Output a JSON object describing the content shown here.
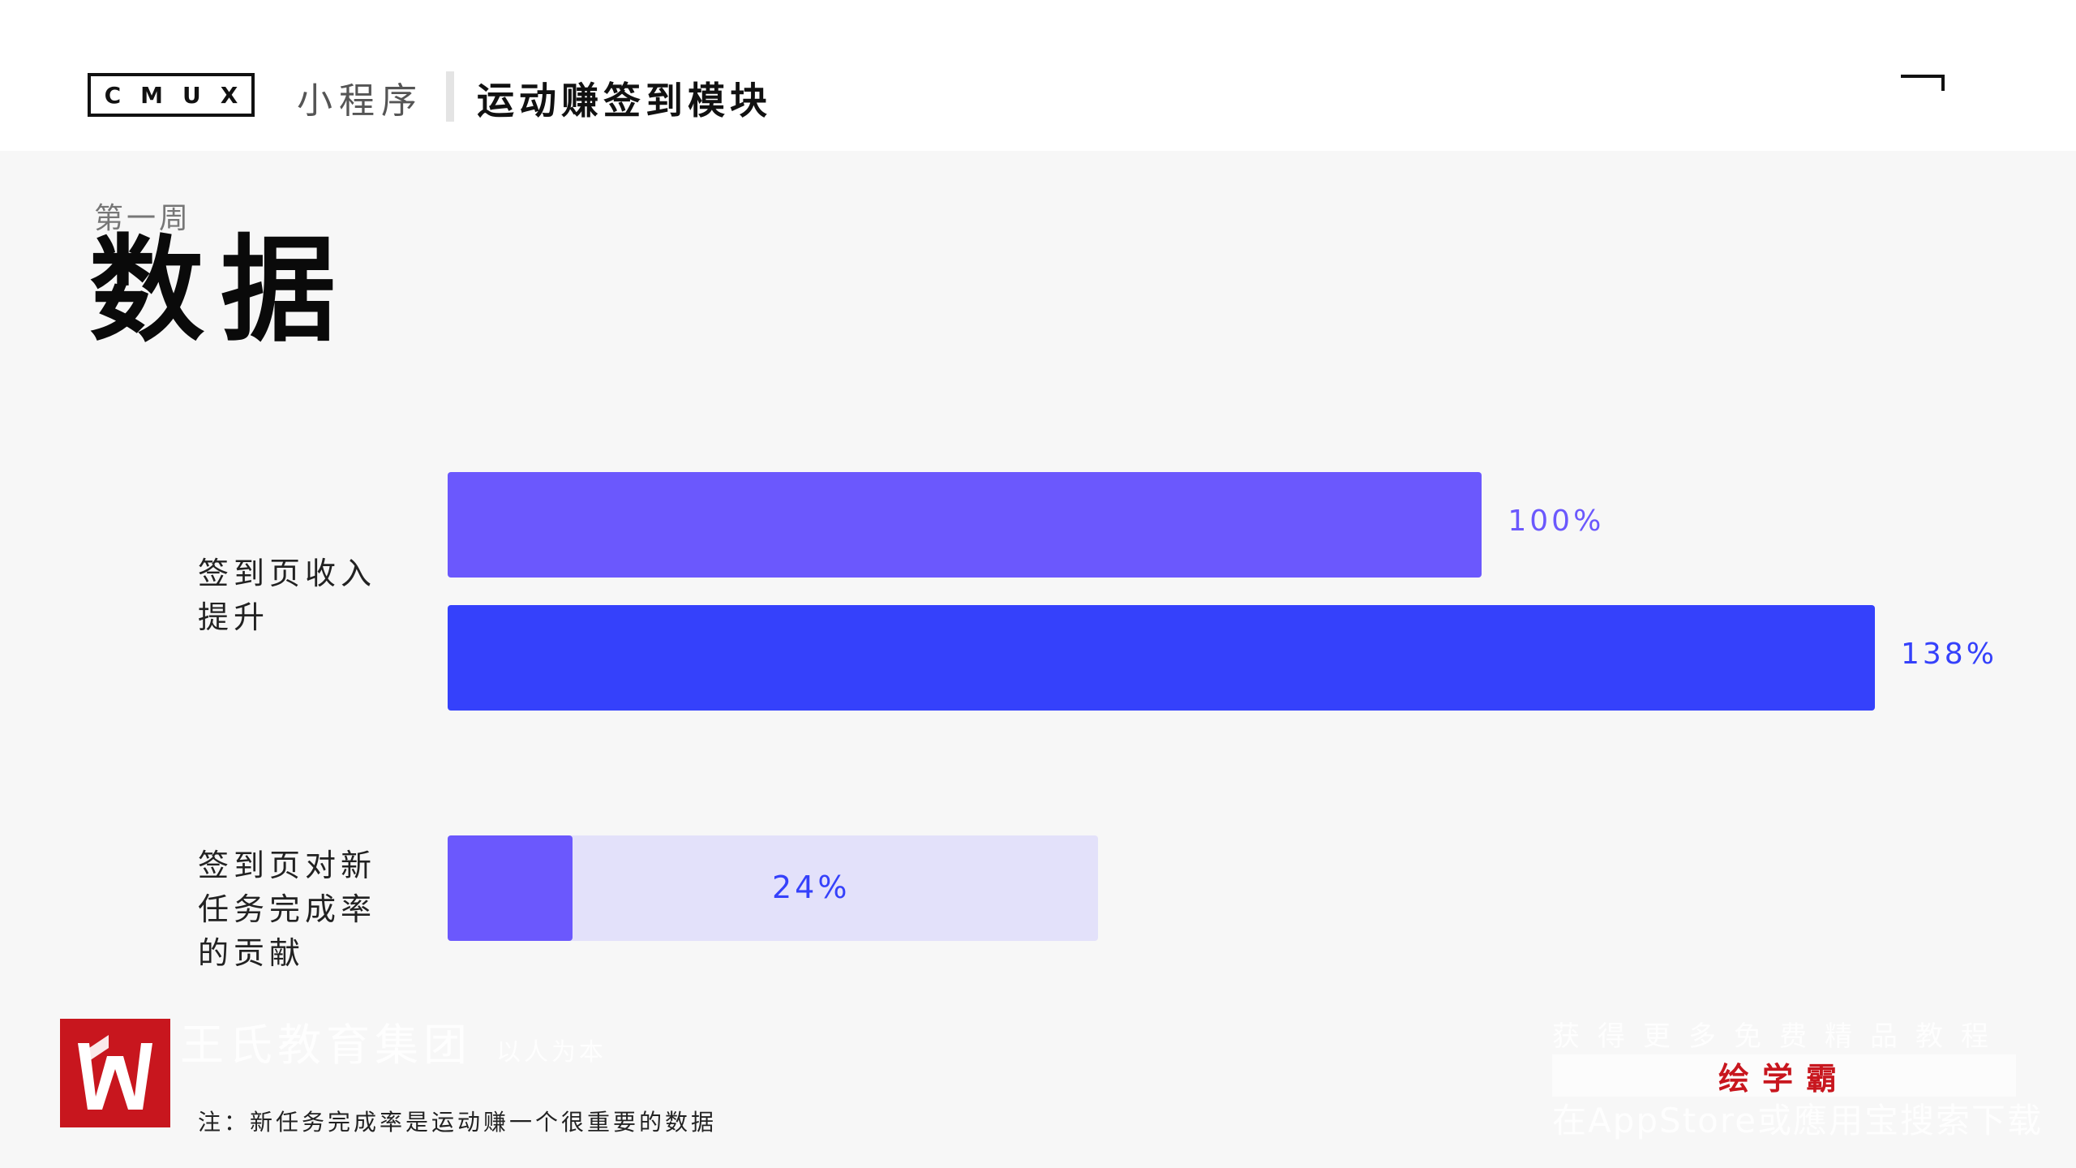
{
  "header": {
    "brand": "CMUX",
    "app": "小程序",
    "title": "运动赚签到模块"
  },
  "page": {
    "week": "第一周",
    "title": "数据"
  },
  "chart_data": {
    "type": "bar",
    "orientation": "horizontal",
    "groups": [
      {
        "label": "签到页收入提升",
        "label_lines": [
          "签到页收入",
          "提升"
        ],
        "bars": [
          {
            "value": 100,
            "label": "100%",
            "color": "#6b58fd"
          },
          {
            "value": 138,
            "label": "138%",
            "color": "#3541fb"
          }
        ]
      },
      {
        "label": "签到页对新任务完成率的贡献",
        "label_lines": [
          "签到页对新",
          "任务完成率",
          "的贡献"
        ],
        "bars": [
          {
            "value": 24,
            "label": "24%",
            "color": "#6b58fd",
            "track_color": "#e3e1fa",
            "label_color": "#3541fb"
          }
        ]
      }
    ],
    "xlim": [
      0,
      138
    ],
    "grid": false
  },
  "watermark": {
    "left_main": "王氏教育集团",
    "left_sub": "以人为本",
    "right_top": "获得更多免费精品教程",
    "right_mid": "绘学霸",
    "right_bottom": "在AppStore或應用宝搜索下载"
  },
  "footnote": "注：新任务完成率是运动赚一个很重要的数据",
  "colors": {
    "accent_purple": "#6b58fd",
    "accent_blue": "#3541fb",
    "track": "#e3e1fa",
    "logo_red": "#c8161e"
  }
}
